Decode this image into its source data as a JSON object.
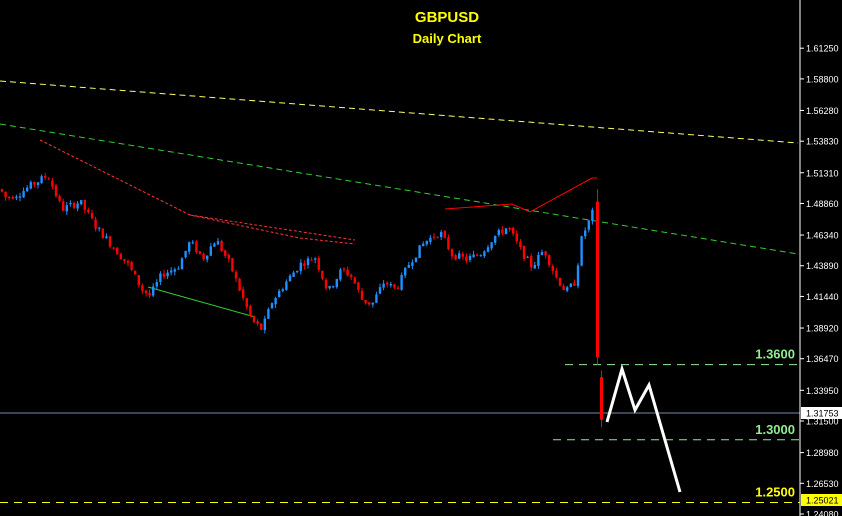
{
  "chart_data": {
    "type": "candlestick",
    "title": "GBPUSD",
    "subtitle": "Daily Chart",
    "ylim": [
      1.2408,
      1.635
    ],
    "y_ticks": [
      "1.61250",
      "1.58800",
      "1.56280",
      "1.53830",
      "1.51310",
      "1.48860",
      "1.46340",
      "1.43890",
      "1.41440",
      "1.38920",
      "1.36470",
      "1.33950",
      "1.31500",
      "1.28980",
      "1.26530",
      "1.24080"
    ],
    "current_price": "1.31753",
    "last_price_label": "1.25021",
    "levels": [
      {
        "label": "1.3600",
        "value": 1.36,
        "color": "#90ee90"
      },
      {
        "label": "1.3000",
        "value": 1.3,
        "color": "#90ee90"
      },
      {
        "label": "1.2500",
        "value": 1.25,
        "color": "#ffff00"
      }
    ],
    "grid": false,
    "colors": {
      "up": "#1e90ff",
      "down": "#ff0000",
      "text": "#ffffff",
      "title": "#ffff00",
      "trend_yellow": "#ffff66",
      "trend_green": "#32cd32",
      "projection": "#ffffff"
    }
  }
}
